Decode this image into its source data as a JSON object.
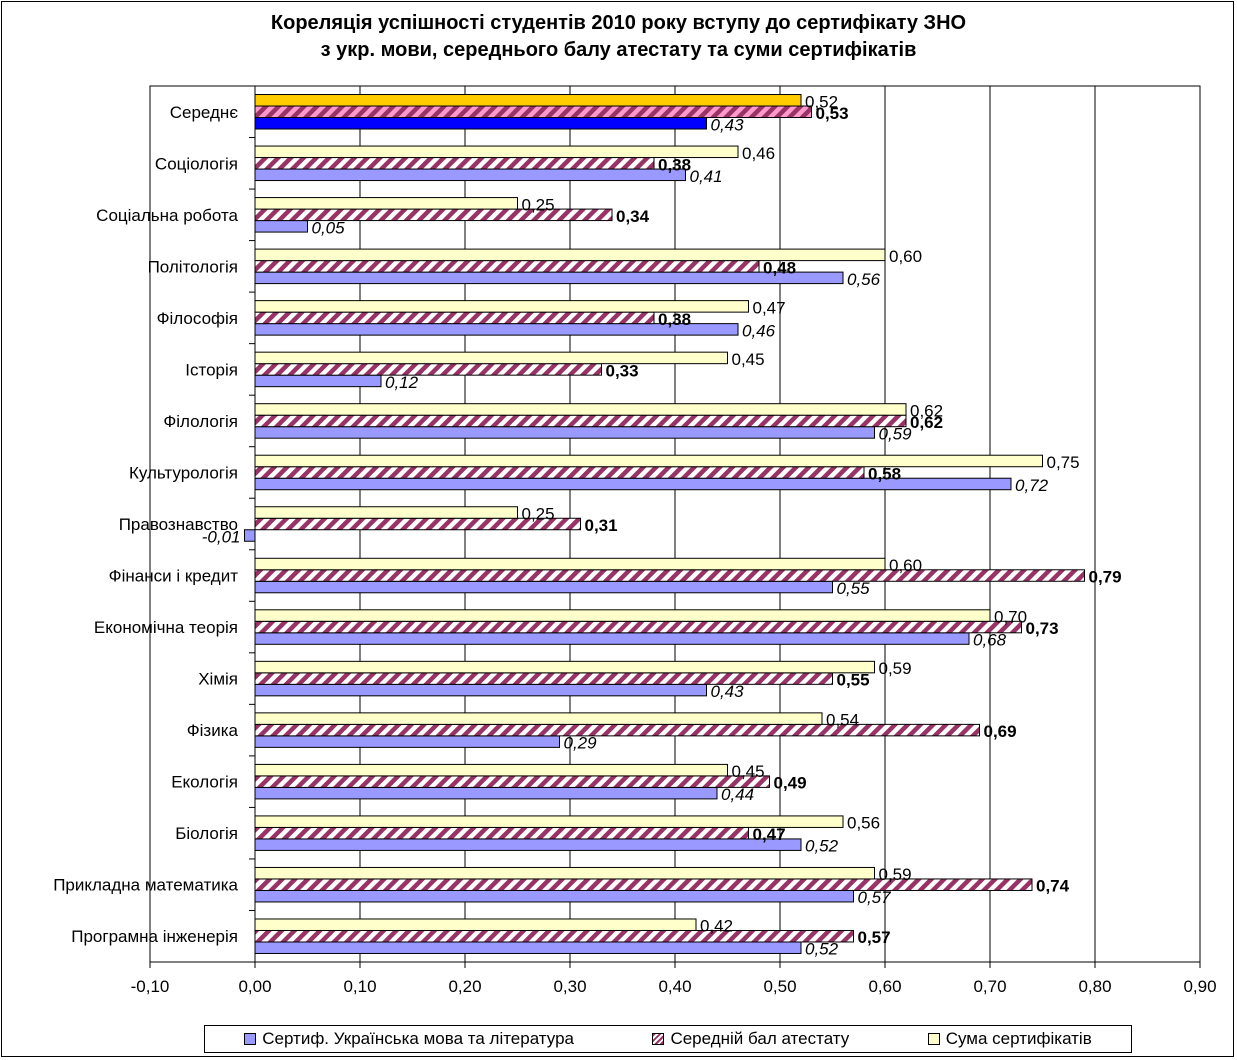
{
  "chart_data": {
    "type": "bar",
    "orientation": "horizontal",
    "title": [
      "Кореляція успішності студентів 2010 року вступу до сертифікату ЗНО",
      "з укр. мови, середнього балу атестату та суми сертифікатів"
    ],
    "xlim": [
      -0.1,
      0.9
    ],
    "xticks": [
      "-0,10",
      "0,00",
      "0,10",
      "0,20",
      "0,30",
      "0,40",
      "0,50",
      "0,60",
      "0,70",
      "0,80",
      "0,90"
    ],
    "xtick_values": [
      -0.1,
      0,
      0.1,
      0.2,
      0.3,
      0.4,
      0.5,
      0.6,
      0.7,
      0.8,
      0.9
    ],
    "grid": true,
    "legend_position": "bottom",
    "categories": [
      "Середнє",
      "Соціологія",
      "Соціальна робота",
      "Політологія",
      "Філософія",
      "Історія",
      "Філологія",
      "Культурологія",
      "Правознавство",
      "Фінанси і кредит",
      "Економічна теорія",
      "Хімія",
      "Фізика",
      "Екологія",
      "Біологія",
      "Прикладна математика",
      "Програмна інженерія"
    ],
    "series": [
      {
        "name": "Сертиф. Українська мова та література",
        "color": "#9999ff",
        "highlight_color": "#0000ff",
        "values": [
          0.43,
          0.41,
          0.05,
          0.56,
          0.46,
          0.12,
          0.59,
          0.72,
          -0.01,
          0.55,
          0.68,
          0.43,
          0.29,
          0.44,
          0.52,
          0.57,
          0.52
        ],
        "labels": [
          "0,43",
          "0,41",
          "0,05",
          "0,56",
          "0,46",
          "0,12",
          "0,59",
          "0,72",
          "-0,01",
          "0,55",
          "0,68",
          "0,43",
          "0,29",
          "0,44",
          "0,52",
          "0,57",
          "0,52"
        ]
      },
      {
        "name": "Середній бал атестату",
        "color": "#993366",
        "highlight_color": "#ff99cc",
        "values": [
          0.53,
          0.38,
          0.34,
          0.48,
          0.38,
          0.33,
          0.62,
          0.58,
          0.31,
          0.79,
          0.73,
          0.55,
          0.69,
          0.49,
          0.47,
          0.74,
          0.57
        ],
        "labels": [
          "0,53",
          "0,38",
          "0,34",
          "0,48",
          "0,38",
          "0,33",
          "0,62",
          "0,58",
          "0,31",
          "0,79",
          "0,73",
          "0,55",
          "0,69",
          "0,49",
          "0,47",
          "0,74",
          "0,57"
        ]
      },
      {
        "name": "Сума сертифікатів",
        "color": "#ffffcc",
        "highlight_color": "#ffcc00",
        "values": [
          0.52,
          0.46,
          0.25,
          0.6,
          0.47,
          0.45,
          0.62,
          0.75,
          0.25,
          0.6,
          0.7,
          0.59,
          0.54,
          0.45,
          0.56,
          0.59,
          0.42
        ],
        "labels": [
          "0,52",
          "0,46",
          "0,25",
          "0,60",
          "0,47",
          "0,45",
          "0,62",
          "0,75",
          "0,25",
          "0,60",
          "0,70",
          "0,59",
          "0,54",
          "0,45",
          "0,56",
          "0,59",
          "0,42"
        ]
      }
    ]
  }
}
